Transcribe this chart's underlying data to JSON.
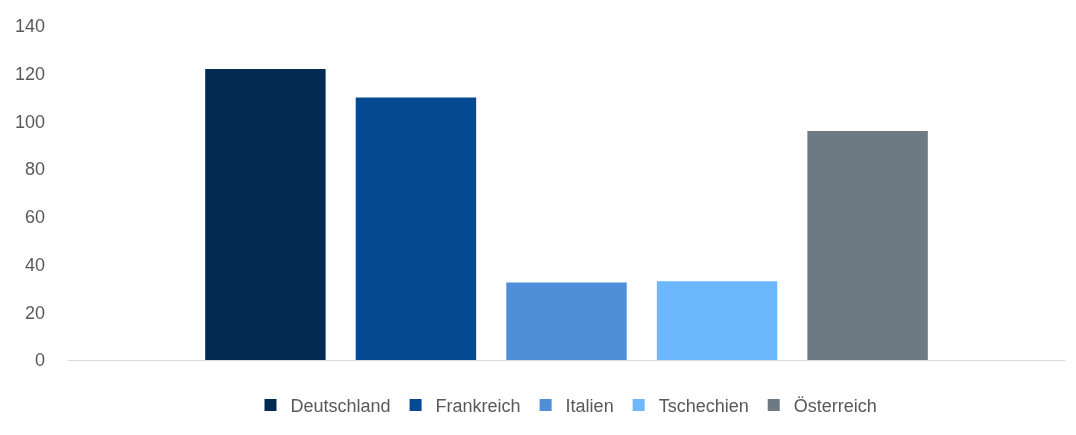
{
  "chart_data": {
    "type": "bar",
    "categories": [
      null
    ],
    "series": [
      {
        "name": "Deutschland",
        "color": "#022a52",
        "values": [
          122
        ]
      },
      {
        "name": "Frankreich",
        "color": "#034a92",
        "values": [
          110
        ]
      },
      {
        "name": "Italien",
        "color": "#4f8fda",
        "values": [
          32.5
        ]
      },
      {
        "name": "Tschechien",
        "color": "#6cb7fd",
        "values": [
          33
        ]
      },
      {
        "name": "Österreich",
        "color": "#6d7a83",
        "values": [
          96
        ]
      }
    ],
    "ylim": [
      0,
      140
    ],
    "yticks": [
      0,
      20,
      40,
      60,
      80,
      100,
      120,
      140
    ],
    "grid": false,
    "legend": "bottom"
  }
}
